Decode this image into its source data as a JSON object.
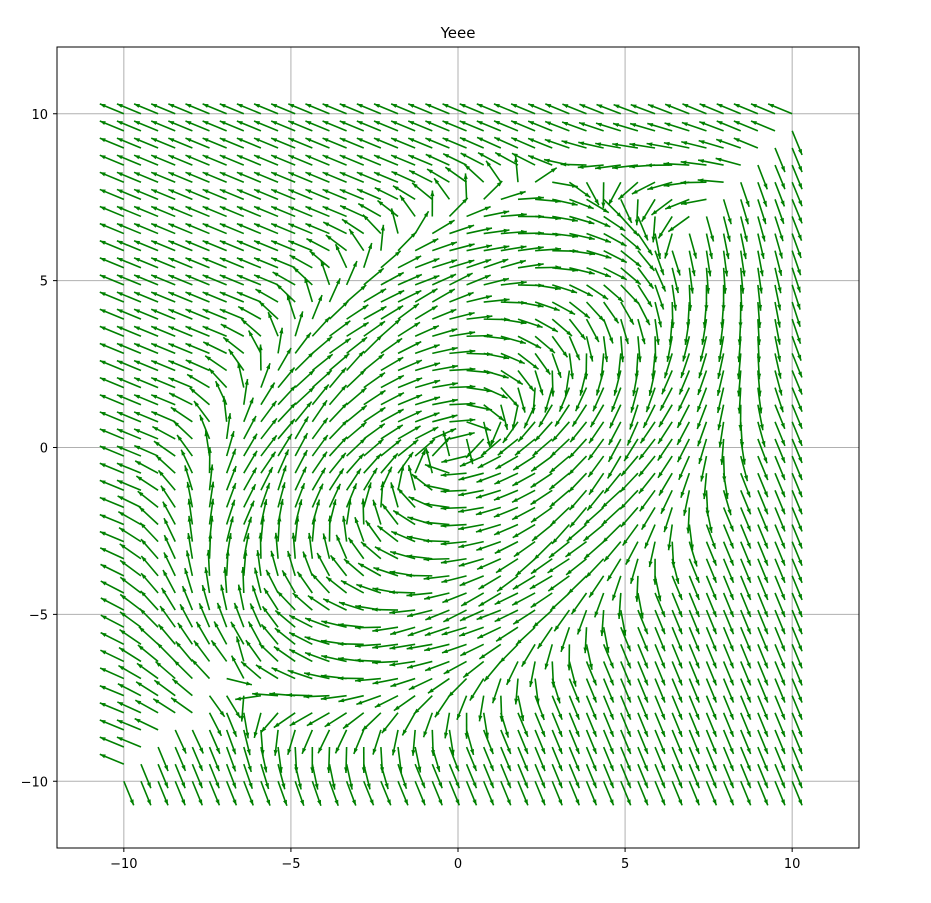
{
  "chart_data": {
    "type": "quiver",
    "title": "Yeee",
    "xlabel": "",
    "ylabel": "",
    "xlim": [
      -12,
      12
    ],
    "ylim": [
      -12,
      12
    ],
    "xticks": [
      -10,
      -5,
      0,
      5,
      10
    ],
    "yticks": [
      -10,
      -5,
      0,
      5,
      10
    ],
    "xtick_labels": [
      "−10",
      "−5",
      "0",
      "5",
      "10"
    ],
    "ytick_labels": [
      "−10",
      "−5",
      "0",
      "5",
      "10"
    ],
    "grid": true,
    "arrow_color": "#008000",
    "sampling": {
      "x_range": [
        -10,
        10
      ],
      "y_range": [
        -10,
        10
      ],
      "count_per_axis": 40
    },
    "field": {
      "description": "unit direction field",
      "u": "cos(y + x^3/40) wrapped ellipse-like flow",
      "note": "direction only; arrows normalized"
    }
  }
}
